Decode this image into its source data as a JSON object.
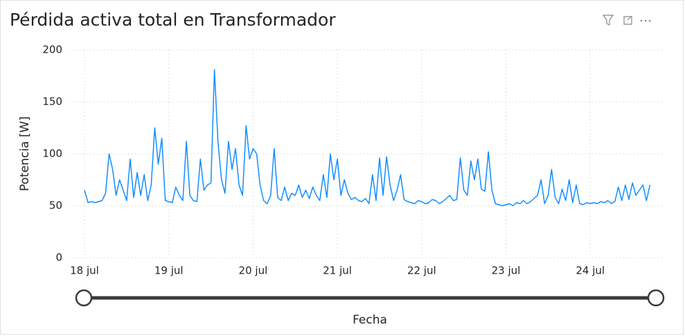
{
  "chart_data": {
    "type": "line",
    "title": "Pérdida activa total en Transformador",
    "y_label": "Potencia [W]",
    "x_label": "Fecha",
    "ylim": [
      0,
      200
    ],
    "yticks": [
      0,
      50,
      100,
      150,
      200
    ],
    "grid": true,
    "categories": [
      "18 jul",
      null,
      null,
      null,
      null,
      null,
      null,
      null,
      null,
      null,
      null,
      null,
      null,
      null,
      null,
      null,
      null,
      null,
      null,
      null,
      null,
      null,
      null,
      null,
      "19 jul",
      null,
      null,
      null,
      null,
      null,
      null,
      null,
      null,
      null,
      null,
      null,
      null,
      null,
      null,
      null,
      null,
      null,
      null,
      null,
      null,
      null,
      null,
      null,
      "20 jul",
      null,
      null,
      null,
      null,
      null,
      null,
      null,
      null,
      null,
      null,
      null,
      null,
      null,
      null,
      null,
      null,
      null,
      null,
      null,
      null,
      null,
      null,
      null,
      "21 jul",
      null,
      null,
      null,
      null,
      null,
      null,
      null,
      null,
      null,
      null,
      null,
      null,
      null,
      null,
      null,
      null,
      null,
      null,
      null,
      null,
      null,
      null,
      null,
      "22 jul",
      null,
      null,
      null,
      null,
      null,
      null,
      null,
      null,
      null,
      null,
      null,
      null,
      null,
      null,
      null,
      null,
      null,
      null,
      null,
      null,
      null,
      null,
      null,
      "23 jul",
      null,
      null,
      null,
      null,
      null,
      null,
      null,
      null,
      null,
      null,
      null,
      null,
      null,
      null,
      null,
      null,
      null,
      null,
      null,
      null,
      null,
      null,
      null,
      "24 jul",
      null,
      null,
      null,
      null,
      null,
      null,
      null,
      null,
      null,
      null,
      null,
      null,
      null,
      null,
      null,
      null,
      null
    ],
    "series": [
      {
        "name": "Pérdida activa total",
        "color": "#118dff",
        "values": [
          65,
          53,
          54,
          53,
          54,
          55,
          62,
          100,
          85,
          60,
          75,
          65,
          55,
          95,
          58,
          82,
          60,
          80,
          55,
          70,
          125,
          90,
          115,
          55,
          54,
          53,
          68,
          60,
          55,
          112,
          60,
          55,
          54,
          95,
          65,
          70,
          72,
          181,
          112,
          75,
          62,
          112,
          85,
          105,
          70,
          60,
          127,
          95,
          105,
          100,
          70,
          55,
          52,
          60,
          105,
          58,
          55,
          68,
          55,
          62,
          60,
          70,
          58,
          65,
          57,
          68,
          60,
          55,
          80,
          58,
          100,
          75,
          95,
          60,
          75,
          62,
          56,
          58,
          55,
          54,
          57,
          52,
          80,
          55,
          96,
          60,
          97,
          70,
          55,
          65,
          80,
          56,
          54,
          53,
          52,
          55,
          54,
          52,
          53,
          56,
          55,
          52,
          54,
          57,
          60,
          55,
          56,
          96,
          65,
          60,
          93,
          75,
          95,
          66,
          64,
          102,
          65,
          52,
          51,
          50,
          51,
          52,
          50,
          53,
          52,
          55,
          52,
          54,
          57,
          60,
          75,
          52,
          60,
          85,
          58,
          52,
          66,
          55,
          75,
          53,
          70,
          52,
          51,
          53,
          52,
          53,
          52,
          54,
          53,
          55,
          52,
          54,
          68,
          55,
          70,
          56,
          72,
          60,
          65,
          70,
          55,
          70
        ]
      }
    ]
  }
}
